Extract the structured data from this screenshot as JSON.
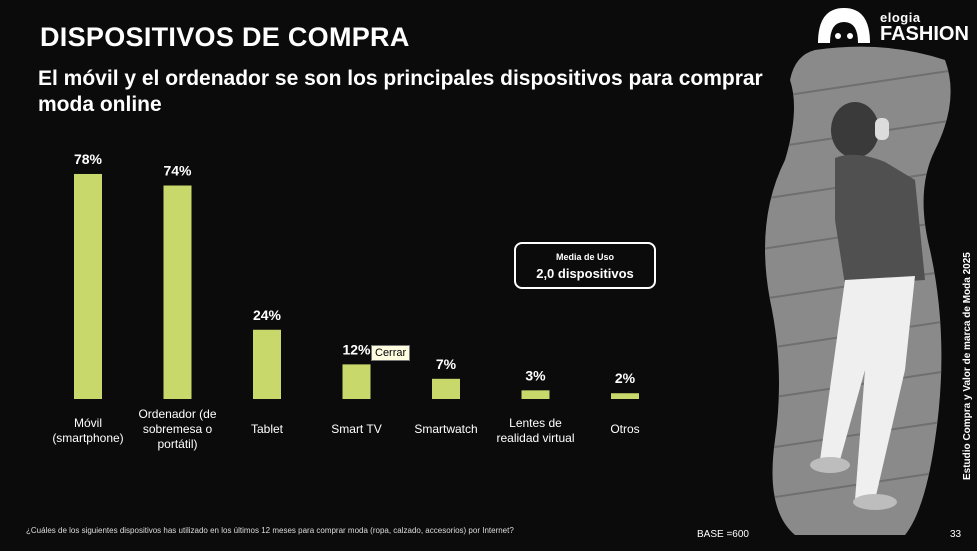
{
  "header": {
    "title": "DISPOSITIVOS DE COMPRA",
    "subtitle": "El móvil y el ordenador se son los principales dispositivos para comprar moda online"
  },
  "logo": {
    "top": "elogia",
    "bottom": "FASHION"
  },
  "media_box": {
    "label": "Media de Uso",
    "value": "2,0 dispositivos"
  },
  "tooltip": {
    "label": "Cerrar"
  },
  "side_text": "Estudio Compra y Valor de marca de Moda 2025",
  "footer": {
    "question": "¿Cuáles de los siguientes dispositivos has utilizado en los últimos 12 meses para comprar moda (ropa, calzado, accesorios) por Internet?",
    "base": "BASE =600",
    "page": "33"
  },
  "colors": {
    "bar": "#c9d86b",
    "background": "#0b0b0b",
    "text": "#ffffff"
  },
  "chart_data": {
    "type": "bar",
    "categories": [
      [
        "Móvil",
        "(smartphone)"
      ],
      [
        "Ordenador (de",
        "sobremesa o",
        "portátil)"
      ],
      [
        "Tablet"
      ],
      [
        "Smart TV"
      ],
      [
        "Smartwatch"
      ],
      [
        "Lentes de",
        "realidad virtual"
      ],
      [
        "Otros"
      ]
    ],
    "values": [
      78,
      74,
      24,
      12,
      7,
      3,
      2
    ],
    "value_labels": [
      "78%",
      "74%",
      "24%",
      "12%",
      "7%",
      "3%",
      "2%"
    ],
    "unit": "%",
    "ylim": [
      0,
      100
    ],
    "grid": false,
    "legend": "none"
  }
}
